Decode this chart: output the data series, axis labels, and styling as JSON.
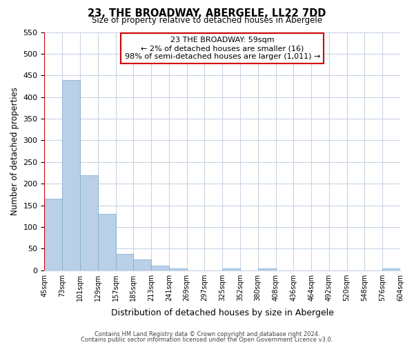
{
  "title": "23, THE BROADWAY, ABERGELE, LL22 7DD",
  "subtitle": "Size of property relative to detached houses in Abergele",
  "xlabel": "Distribution of detached houses by size in Abergele",
  "ylabel": "Number of detached properties",
  "bar_values": [
    165,
    440,
    220,
    130,
    37,
    25,
    10,
    5,
    0,
    0,
    5,
    0,
    5,
    0,
    0,
    0,
    0,
    0,
    0,
    4
  ],
  "bar_labels": [
    "45sqm",
    "73sqm",
    "101sqm",
    "129sqm",
    "157sqm",
    "185sqm",
    "213sqm",
    "241sqm",
    "269sqm",
    "297sqm",
    "325sqm",
    "352sqm",
    "380sqm",
    "408sqm",
    "436sqm",
    "464sqm",
    "492sqm",
    "520sqm",
    "548sqm",
    "576sqm",
    "604sqm"
  ],
  "bar_color": "#b8d0e8",
  "bar_edge_color": "#7aaad0",
  "ylim": [
    0,
    550
  ],
  "yticks": [
    0,
    50,
    100,
    150,
    200,
    250,
    300,
    350,
    400,
    450,
    500,
    550
  ],
  "annotation_title": "23 THE BROADWAY: 59sqm",
  "annotation_line1": "← 2% of detached houses are smaller (16)",
  "annotation_line2": "98% of semi-detached houses are larger (1,011) →",
  "footnote1": "Contains HM Land Registry data © Crown copyright and database right 2024.",
  "footnote2": "Contains public sector information licensed under the Open Government Licence v3.0.",
  "bg_color": "#ffffff",
  "grid_color": "#c8d4e4",
  "red_line_color": "#cc0000",
  "annotation_edge_color": "#cc0000"
}
